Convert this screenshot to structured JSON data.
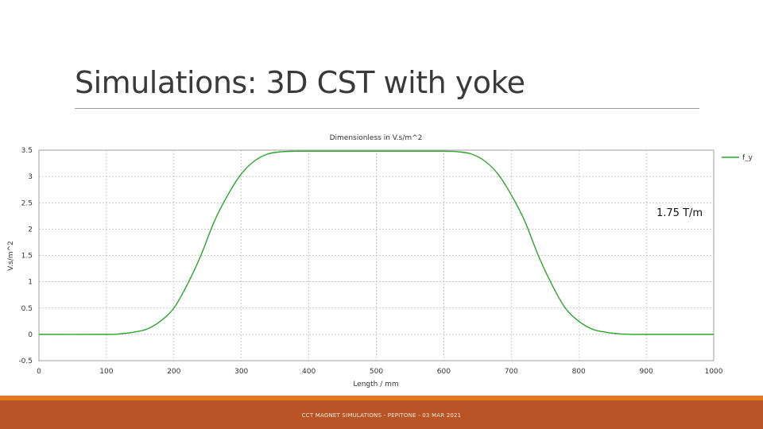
{
  "slide": {
    "title": "Simulations: 3D CST with yoke",
    "footer": "CCT MAGNET SIMULATIONS - PEPITONE - 03 MAR 2021",
    "annotation": "1.75 T/m"
  },
  "colors": {
    "series": "#2aa52a",
    "grid": "#b8b8b8",
    "footer_band": "#b95525",
    "footer_stripe": "#e07b22"
  },
  "chart_data": {
    "type": "line",
    "title": "Dimensionless in V.s/m^2",
    "xlabel": "Length / mm",
    "ylabel": "V.s/m^2",
    "xlim": [
      0,
      1000
    ],
    "ylim": [
      -0.5,
      3.5
    ],
    "xticks": [
      0,
      100,
      200,
      300,
      400,
      500,
      600,
      700,
      800,
      900,
      1000
    ],
    "yticks": [
      -0.5,
      0,
      0.5,
      1,
      1.5,
      2,
      2.5,
      3,
      3.5
    ],
    "grid": true,
    "legend_position": "top-right",
    "series": [
      {
        "name": "f_y",
        "x": [
          0,
          100,
          120,
          140,
          160,
          180,
          200,
          220,
          240,
          260,
          280,
          300,
          320,
          340,
          360,
          380,
          400,
          500,
          600,
          620,
          640,
          660,
          680,
          700,
          720,
          740,
          760,
          780,
          800,
          820,
          840,
          860,
          880,
          900,
          1000
        ],
        "y": [
          0,
          0,
          0.01,
          0.04,
          0.1,
          0.25,
          0.5,
          0.95,
          1.5,
          2.15,
          2.65,
          3.05,
          3.3,
          3.43,
          3.47,
          3.48,
          3.48,
          3.48,
          3.48,
          3.47,
          3.43,
          3.3,
          3.05,
          2.65,
          2.15,
          1.5,
          0.95,
          0.5,
          0.25,
          0.1,
          0.04,
          0.01,
          0,
          0,
          0
        ]
      }
    ]
  }
}
